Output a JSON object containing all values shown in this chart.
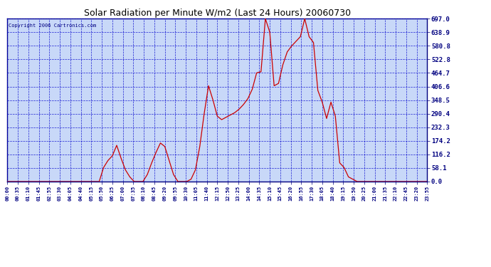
{
  "title": "Solar Radiation per Minute W/m2 (Last 24 Hours) 20060730",
  "copyright": "Copyright 2006 Cartronics.com",
  "yticks": [
    0.0,
    58.1,
    116.2,
    174.2,
    232.3,
    290.4,
    348.5,
    406.6,
    464.7,
    522.8,
    580.8,
    638.9,
    697.0
  ],
  "ymin": 0.0,
  "ymax": 697.0,
  "line_color": "#cc0000",
  "bg_color": "#c8d8f8",
  "grid_color": "#0000cc",
  "title_color": "#000080",
  "border_color": "#000080",
  "xtick_labels": [
    "00:00",
    "00:35",
    "01:10",
    "01:45",
    "02:55",
    "03:30",
    "04:05",
    "04:40",
    "05:15",
    "05:50",
    "06:25",
    "07:00",
    "07:35",
    "08:10",
    "08:45",
    "09:20",
    "09:55",
    "10:30",
    "11:05",
    "11:40",
    "12:15",
    "12:50",
    "13:25",
    "14:00",
    "14:35",
    "15:10",
    "15:45",
    "16:20",
    "16:55",
    "17:30",
    "18:05",
    "18:40",
    "19:15",
    "19:50",
    "20:25",
    "21:00",
    "21:35",
    "22:10",
    "22:45",
    "23:20",
    "23:55"
  ],
  "y_data": [
    0,
    0,
    0,
    0,
    0,
    0,
    0,
    0,
    0,
    0,
    0,
    0,
    0,
    0,
    0,
    0,
    0,
    0,
    0,
    0,
    0,
    0,
    60,
    90,
    110,
    155,
    100,
    50,
    20,
    0,
    0,
    0,
    30,
    80,
    125,
    165,
    150,
    90,
    30,
    0,
    0,
    0,
    10,
    50,
    150,
    290,
    410,
    350,
    280,
    265,
    275,
    285,
    295,
    310,
    330,
    355,
    395,
    465,
    470,
    697,
    640,
    410,
    420,
    500,
    555,
    580,
    600,
    620,
    697,
    620,
    595,
    390,
    340,
    270,
    340,
    280,
    80,
    60,
    20,
    10,
    0,
    0,
    0,
    0,
    0,
    0,
    0,
    0,
    0,
    0,
    0,
    0,
    0,
    0,
    0,
    0,
    0
  ]
}
